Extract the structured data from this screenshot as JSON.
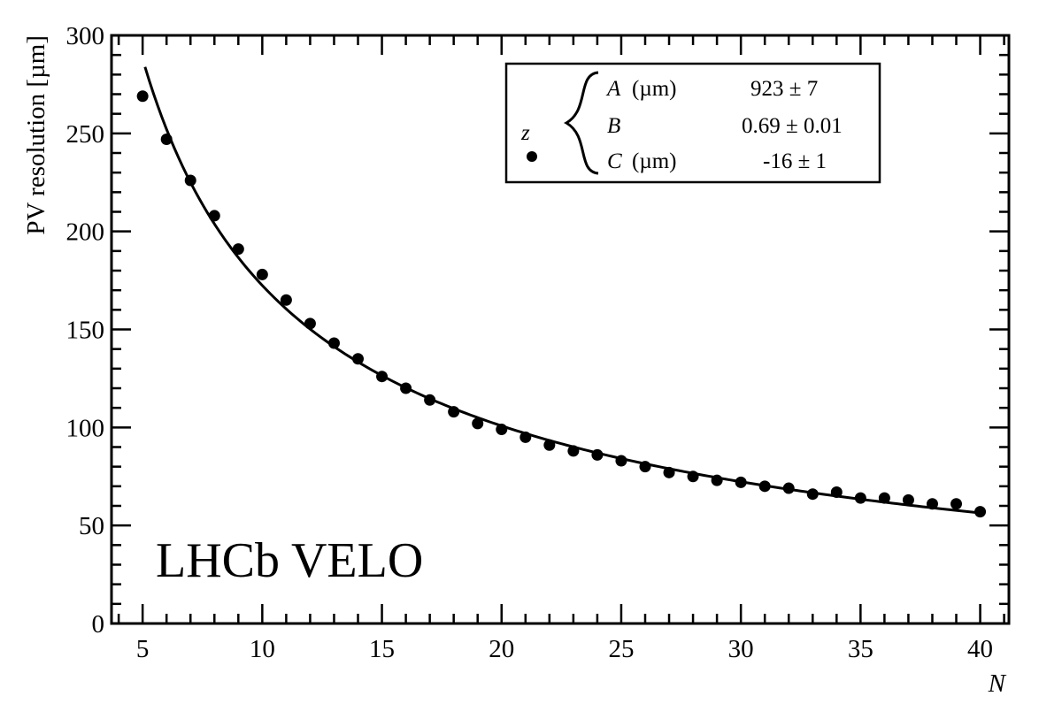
{
  "chart_data": {
    "type": "scatter",
    "title": "",
    "xlabel": "N",
    "ylabel": "PV resolution [µm]",
    "xlim": [
      3.7,
      41.2
    ],
    "ylim": [
      0,
      300
    ],
    "x_ticks": [
      5,
      10,
      15,
      20,
      25,
      30,
      35,
      40
    ],
    "x_tick_labels": [
      "5",
      "10",
      "15",
      "20",
      "25",
      "30",
      "35",
      "40"
    ],
    "y_ticks": [
      0,
      50,
      100,
      150,
      200,
      250,
      300
    ],
    "y_tick_labels": [
      "0",
      "50",
      "100",
      "150",
      "200",
      "250",
      "300"
    ],
    "grid": false,
    "series": [
      {
        "name": "z",
        "marker": "filled-circle",
        "x": [
          5,
          6,
          7,
          8,
          9,
          10,
          11,
          12,
          13,
          14,
          15,
          16,
          17,
          18,
          19,
          20,
          21,
          22,
          23,
          24,
          25,
          26,
          27,
          28,
          29,
          30,
          31,
          32,
          33,
          34,
          35,
          36,
          37,
          38,
          39,
          40
        ],
        "y": [
          269,
          247,
          226,
          208,
          191,
          178,
          165,
          153,
          143,
          135,
          126,
          120,
          114,
          108,
          102,
          99,
          95,
          91,
          88,
          86,
          83,
          80,
          77,
          75,
          73,
          72,
          70,
          69,
          66,
          67,
          64,
          64,
          63,
          61,
          61,
          57
        ]
      }
    ],
    "fit": {
      "formula": "A / N^B + C",
      "A": 923,
      "B": 0.69,
      "C": -16,
      "x_range": [
        5.1,
        40.0
      ]
    },
    "legend": {
      "position": "top-right",
      "series_label": "z",
      "params": [
        {
          "name": "A",
          "unit": "(µm)",
          "value": "923 ± 7"
        },
        {
          "name": "B",
          "unit": "",
          "value": "0.69 ± 0.01"
        },
        {
          "name": "C",
          "unit": "(µm)",
          "value": "-16 ± 1"
        }
      ]
    },
    "annotation": "LHCb VELO"
  }
}
